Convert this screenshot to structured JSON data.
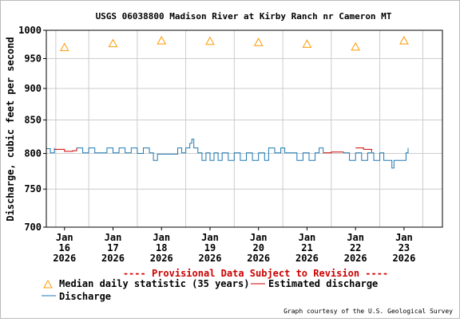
{
  "chart_data": {
    "type": "line",
    "title": "USGS 06038800 Madison River at Kirby Ranch nr Cameron MT",
    "ylabel": "Discharge, cubic feet per second",
    "xlabel": "",
    "yscale": "log",
    "ylim": [
      700,
      1000
    ],
    "yticks": [
      700,
      750,
      800,
      850,
      900,
      950,
      1000
    ],
    "xlim": [
      "2026-01-15T15:00",
      "2026-01-23T19:00"
    ],
    "xticks": [
      {
        "date": "2026-01-16",
        "line1": "Jan",
        "line2": "16",
        "line3": "2026"
      },
      {
        "date": "2026-01-17",
        "line1": "Jan",
        "line2": "17",
        "line3": "2026"
      },
      {
        "date": "2026-01-18",
        "line1": "Jan",
        "line2": "18",
        "line3": "2026"
      },
      {
        "date": "2026-01-19",
        "line1": "Jan",
        "line2": "19",
        "line3": "2026"
      },
      {
        "date": "2026-01-20",
        "line1": "Jan",
        "line2": "20",
        "line3": "2026"
      },
      {
        "date": "2026-01-21",
        "line1": "Jan",
        "line2": "21",
        "line3": "2026"
      },
      {
        "date": "2026-01-22",
        "line1": "Jan",
        "line2": "22",
        "line3": "2026"
      },
      {
        "date": "2026-01-23",
        "line1": "Jan",
        "line2": "23",
        "line3": "2026"
      }
    ],
    "grid": true,
    "provisional_note": "---- Provisional Data Subject to Revision ----",
    "credit": "Graph courtesy of the U.S. Geological Survey",
    "median": {
      "name": "Median daily statistic (35 years)",
      "color": "#ff9900",
      "points": [
        {
          "x": "2026-01-16T00:00",
          "y": 970
        },
        {
          "x": "2026-01-17T00:00",
          "y": 977
        },
        {
          "x": "2026-01-18T00:00",
          "y": 982
        },
        {
          "x": "2026-01-19T00:00",
          "y": 981
        },
        {
          "x": "2026-01-20T00:00",
          "y": 979
        },
        {
          "x": "2026-01-21T00:00",
          "y": 976
        },
        {
          "x": "2026-01-22T00:00",
          "y": 971
        },
        {
          "x": "2026-01-23T00:00",
          "y": 982
        }
      ]
    },
    "series": [
      {
        "name": "Discharge",
        "color": "#1f78b4",
        "segments": [
          [
            {
              "x": "2026-01-15T15:00",
              "y": 807
            },
            {
              "x": "2026-01-15T17:00",
              "y": 801
            },
            {
              "x": "2026-01-15T19:00",
              "y": 808
            }
          ],
          [
            {
              "x": "2026-01-16T06:00",
              "y": 808
            },
            {
              "x": "2026-01-16T09:00",
              "y": 801
            },
            {
              "x": "2026-01-16T12:00",
              "y": 808
            },
            {
              "x": "2026-01-16T15:00",
              "y": 801
            },
            {
              "x": "2026-01-16T18:00",
              "y": 801
            },
            {
              "x": "2026-01-16T21:00",
              "y": 808
            },
            {
              "x": "2026-01-17T00:00",
              "y": 801
            },
            {
              "x": "2026-01-17T03:00",
              "y": 808
            },
            {
              "x": "2026-01-17T06:00",
              "y": 801
            },
            {
              "x": "2026-01-17T09:00",
              "y": 808
            },
            {
              "x": "2026-01-17T12:00",
              "y": 800
            },
            {
              "x": "2026-01-17T15:00",
              "y": 808
            },
            {
              "x": "2026-01-17T18:00",
              "y": 801
            },
            {
              "x": "2026-01-17T20:00",
              "y": 790
            },
            {
              "x": "2026-01-17T22:00",
              "y": 799
            },
            {
              "x": "2026-01-18T00:00",
              "y": 799
            },
            {
              "x": "2026-01-18T06:00",
              "y": 799
            },
            {
              "x": "2026-01-18T08:00",
              "y": 808
            },
            {
              "x": "2026-01-18T10:00",
              "y": 801
            },
            {
              "x": "2026-01-18T12:00",
              "y": 808
            },
            {
              "x": "2026-01-18T14:00",
              "y": 815
            },
            {
              "x": "2026-01-18T15:00",
              "y": 821
            },
            {
              "x": "2026-01-18T16:00",
              "y": 808
            },
            {
              "x": "2026-01-18T18:00",
              "y": 801
            },
            {
              "x": "2026-01-18T20:00",
              "y": 790
            },
            {
              "x": "2026-01-18T22:00",
              "y": 801
            },
            {
              "x": "2026-01-19T00:00",
              "y": 790
            },
            {
              "x": "2026-01-19T02:00",
              "y": 801
            },
            {
              "x": "2026-01-19T04:00",
              "y": 790
            },
            {
              "x": "2026-01-19T06:00",
              "y": 801
            },
            {
              "x": "2026-01-19T09:00",
              "y": 790
            },
            {
              "x": "2026-01-19T12:00",
              "y": 801
            },
            {
              "x": "2026-01-19T15:00",
              "y": 790
            },
            {
              "x": "2026-01-19T18:00",
              "y": 801
            },
            {
              "x": "2026-01-19T21:00",
              "y": 790
            },
            {
              "x": "2026-01-20T00:00",
              "y": 801
            },
            {
              "x": "2026-01-20T03:00",
              "y": 790
            },
            {
              "x": "2026-01-20T05:00",
              "y": 808
            },
            {
              "x": "2026-01-20T08:00",
              "y": 801
            },
            {
              "x": "2026-01-20T11:00",
              "y": 808
            },
            {
              "x": "2026-01-20T13:00",
              "y": 801
            },
            {
              "x": "2026-01-20T16:00",
              "y": 801
            },
            {
              "x": "2026-01-20T19:00",
              "y": 790
            },
            {
              "x": "2026-01-20T22:00",
              "y": 801
            },
            {
              "x": "2026-01-21T01:00",
              "y": 790
            },
            {
              "x": "2026-01-21T04:00",
              "y": 801
            },
            {
              "x": "2026-01-21T06:00",
              "y": 808
            },
            {
              "x": "2026-01-21T08:00",
              "y": 801
            }
          ],
          [
            {
              "x": "2026-01-21T18:00",
              "y": 801
            },
            {
              "x": "2026-01-21T21:00",
              "y": 790
            },
            {
              "x": "2026-01-22T00:00",
              "y": 801
            },
            {
              "x": "2026-01-22T03:00",
              "y": 790
            },
            {
              "x": "2026-01-22T06:00",
              "y": 801
            },
            {
              "x": "2026-01-22T09:00",
              "y": 790
            },
            {
              "x": "2026-01-22T12:00",
              "y": 801
            },
            {
              "x": "2026-01-22T14:00",
              "y": 790
            },
            {
              "x": "2026-01-22T17:00",
              "y": 790
            },
            {
              "x": "2026-01-22T18:00",
              "y": 779
            },
            {
              "x": "2026-01-22T19:00",
              "y": 790
            },
            {
              "x": "2026-01-22T22:00",
              "y": 790
            },
            {
              "x": "2026-01-23T00:00",
              "y": 790
            },
            {
              "x": "2026-01-23T01:00",
              "y": 801
            },
            {
              "x": "2026-01-23T02:00",
              "y": 808
            }
          ]
        ]
      },
      {
        "name": "Estimated discharge",
        "color": "#cc0000",
        "segments": [
          [
            {
              "x": "2026-01-15T19:00",
              "y": 806
            },
            {
              "x": "2026-01-16T00:00",
              "y": 803
            },
            {
              "x": "2026-01-16T04:00",
              "y": 804
            },
            {
              "x": "2026-01-16T06:00",
              "y": 808
            }
          ],
          [
            {
              "x": "2026-01-21T08:00",
              "y": 801
            },
            {
              "x": "2026-01-21T12:00",
              "y": 802
            },
            {
              "x": "2026-01-21T18:00",
              "y": 801
            }
          ],
          [
            {
              "x": "2026-01-22T00:00",
              "y": 808
            },
            {
              "x": "2026-01-22T04:00",
              "y": 806
            },
            {
              "x": "2026-01-22T08:00",
              "y": 802
            }
          ]
        ]
      }
    ]
  },
  "legend": {
    "median_label": "Median daily statistic (35 years)",
    "estimated_label": "Estimated discharge",
    "discharge_label": "Discharge"
  }
}
